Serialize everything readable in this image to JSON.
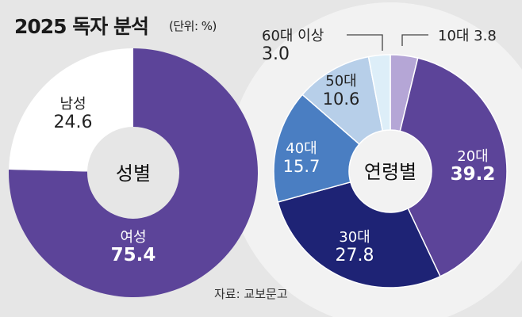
{
  "title": "2025 독자 분석",
  "unit": "(단위: %)",
  "source": "자료: 교보문고",
  "chart_data": [
    {
      "type": "pie",
      "variant": "donut",
      "center_label": "성별",
      "slices": [
        {
          "label": "여성",
          "value": 75.4,
          "color": "#5c4499"
        },
        {
          "label": "남성",
          "value": 24.6,
          "color": "#ffffff"
        }
      ]
    },
    {
      "type": "pie",
      "variant": "donut",
      "center_label": "연령별",
      "slices": [
        {
          "label": "10대",
          "value": 3.8,
          "color": "#b5a6d6"
        },
        {
          "label": "20대",
          "value": 39.2,
          "color": "#5c4499"
        },
        {
          "label": "30대",
          "value": 27.8,
          "color": "#1e2375"
        },
        {
          "label": "40대",
          "value": 15.7,
          "color": "#4a7ec2"
        },
        {
          "label": "50대",
          "value": 10.6,
          "color": "#b7cfe9"
        },
        {
          "label": "60대 이상",
          "value": 3.0,
          "color": "#ddeef8"
        }
      ]
    }
  ]
}
